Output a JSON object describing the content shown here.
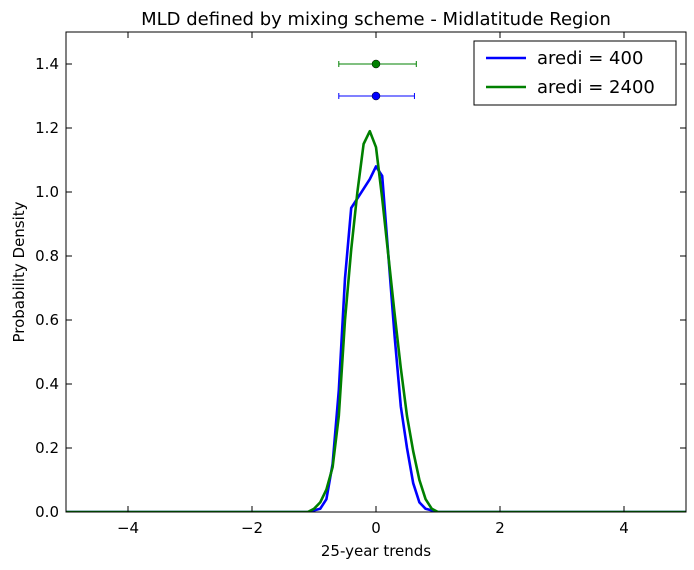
{
  "chart_data": {
    "type": "line",
    "title": "MLD defined by mixing scheme  - Midlatitude Region",
    "xlabel": "25-year trends",
    "ylabel": "Probability Density",
    "xlim": [
      -5,
      5
    ],
    "ylim": [
      0,
      1.5
    ],
    "xticks": [
      -4,
      -2,
      0,
      2,
      4
    ],
    "xtick_labels": [
      "−4",
      "−2",
      "0",
      "2",
      "4"
    ],
    "yticks": [
      0,
      0.2,
      0.4,
      0.6,
      0.8,
      1.0,
      1.2,
      1.4
    ],
    "ytick_labels": [
      "0.0",
      "0.2",
      "0.4",
      "0.6",
      "0.8",
      "1.0",
      "1.2",
      "1.4"
    ],
    "grid": false,
    "legend_position": "top-right",
    "series": [
      {
        "name": "aredi = 400",
        "color": "#0000ff",
        "x": [
          -5,
          -1.1,
          -1.0,
          -0.9,
          -0.8,
          -0.7,
          -0.6,
          -0.5,
          -0.4,
          -0.3,
          -0.2,
          -0.1,
          0.0,
          0.1,
          0.2,
          0.3,
          0.4,
          0.5,
          0.6,
          0.7,
          0.8,
          0.9,
          1.0,
          1.1,
          5
        ],
        "y": [
          0,
          0,
          0.005,
          0.01,
          0.04,
          0.15,
          0.38,
          0.73,
          0.95,
          0.98,
          1.01,
          1.04,
          1.08,
          1.05,
          0.8,
          0.55,
          0.33,
          0.2,
          0.09,
          0.03,
          0.01,
          0.005,
          0,
          0,
          0
        ]
      },
      {
        "name": "aredi = 2400",
        "color": "#008000",
        "x": [
          -5,
          -1.1,
          -1.0,
          -0.9,
          -0.8,
          -0.7,
          -0.6,
          -0.5,
          -0.4,
          -0.3,
          -0.2,
          -0.1,
          0.0,
          0.1,
          0.2,
          0.3,
          0.4,
          0.5,
          0.6,
          0.7,
          0.8,
          0.9,
          1.0,
          1.1,
          5
        ],
        "y": [
          0,
          0,
          0.01,
          0.03,
          0.07,
          0.14,
          0.3,
          0.6,
          0.82,
          1.0,
          1.15,
          1.19,
          1.14,
          0.98,
          0.8,
          0.62,
          0.45,
          0.3,
          0.19,
          0.1,
          0.04,
          0.01,
          0,
          0,
          0
        ]
      }
    ],
    "errorbars": [
      {
        "series": "aredi = 2400",
        "color": "#008000",
        "center": 0.0,
        "low": -0.6,
        "high": 0.65,
        "y": 1.4
      },
      {
        "series": "aredi = 400",
        "color": "#0000ff",
        "center": 0.0,
        "low": -0.6,
        "high": 0.62,
        "y": 1.3
      }
    ]
  }
}
